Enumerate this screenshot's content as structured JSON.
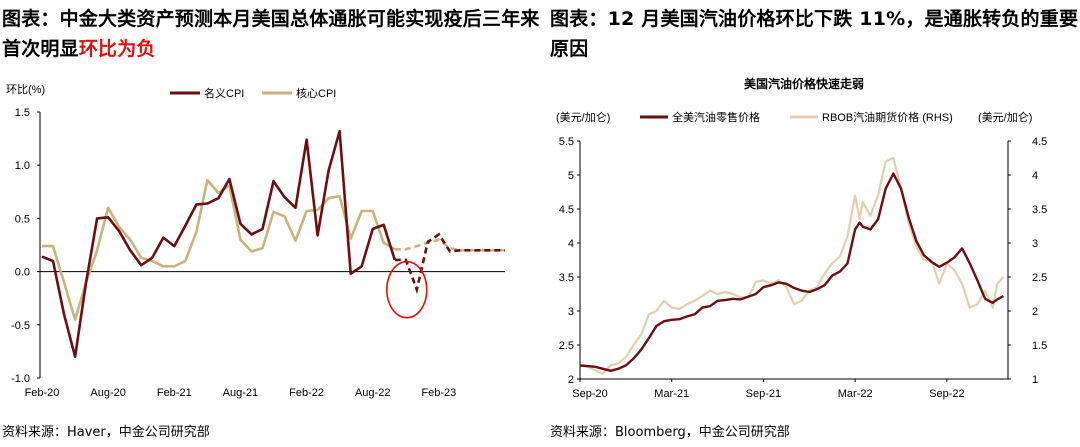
{
  "left": {
    "heading_prefix": "图表：中金大类资产预测本月美国总体通胀可能实现疫后三年来首次明显",
    "heading_highlight": "环比为负",
    "source": "资料来源：Haver，中金公司研究部",
    "colors": {
      "headline": "#6b0f14",
      "core": "#c9b37e",
      "circle": "#e01010"
    }
  },
  "right": {
    "heading": "图表：12 月美国汽油价格环比下跌 11%，是通胀转负的重要原因",
    "source": "资料来源：Bloomberg，中金公司研究部",
    "colors": {
      "retail": "#6b0f14",
      "futures": "#e3ceb0"
    }
  },
  "chart_data": [
    {
      "type": "line",
      "title": "",
      "ylabel": "环比(%)",
      "ylim": [
        -1.0,
        1.5
      ],
      "yticks": [
        -1.0,
        -0.5,
        0.0,
        0.5,
        1.0,
        1.5
      ],
      "ytick_labels": [
        "-1.0",
        "-0.5",
        "0.0",
        "0.5",
        "1.0",
        "1.5"
      ],
      "xtick_labels": [
        "Feb-20",
        "Aug-20",
        "Feb-21",
        "Aug-21",
        "Feb-22",
        "Aug-22",
        "Feb-23"
      ],
      "xtick_index": [
        0,
        6,
        12,
        18,
        24,
        30,
        36
      ],
      "legend_position": "top",
      "series": [
        {
          "name": "名义CPI",
          "values": [
            0.14,
            0.1,
            -0.4,
            -0.8,
            -0.1,
            0.5,
            0.51,
            0.38,
            0.2,
            0.06,
            0.13,
            0.32,
            0.24,
            0.43,
            0.63,
            0.64,
            0.69,
            0.87,
            0.45,
            0.35,
            0.4,
            0.85,
            0.7,
            0.6,
            1.24,
            0.34,
            0.95,
            1.32,
            -0.02,
            0.05,
            0.4,
            0.44,
            0.11
          ],
          "forecast_values": [
            0.11,
            -0.17,
            0.28,
            0.35,
            0.19,
            0.2,
            0.2,
            0.2,
            0.2,
            0.2
          ]
        },
        {
          "name": "核心CPI",
          "values": [
            0.24,
            0.24,
            -0.1,
            -0.45,
            -0.1,
            0.2,
            0.6,
            0.42,
            0.3,
            0.13,
            0.1,
            0.05,
            0.05,
            0.1,
            0.37,
            0.86,
            0.74,
            0.81,
            0.3,
            0.19,
            0.22,
            0.56,
            0.52,
            0.29,
            0.57,
            0.58,
            0.69,
            0.71,
            0.31,
            0.57,
            0.57,
            0.27,
            0.21
          ],
          "forecast_values": [
            0.21,
            0.24,
            0.27,
            0.3,
            0.22,
            0.2,
            0.2,
            0.2,
            0.2,
            0.2
          ]
        }
      ],
      "annotation": "red circle around projected negative month-on-month CPI"
    },
    {
      "type": "line",
      "title": "美国汽油价格快速走弱",
      "ylabel": "(美元/加仑)",
      "ylabel_right": "(美元/加仑)",
      "ylim": [
        2.0,
        5.5
      ],
      "ylim_right": [
        1.0,
        4.5
      ],
      "yticks": [
        2,
        2.5,
        3,
        3.5,
        4,
        4.5,
        5,
        5.5
      ],
      "ytick_labels": [
        "2",
        "2.5",
        "3",
        "3.5",
        "4",
        "4.5",
        "5",
        "5.5"
      ],
      "yticks_right": [
        1,
        1.5,
        2,
        2.5,
        3,
        3.5,
        4,
        4.5
      ],
      "ytick_labels_right": [
        "1",
        "1.5",
        "2",
        "2.5",
        "3",
        "3.5",
        "4",
        "4.5"
      ],
      "x_range": [
        "2020-09",
        "2023-01"
      ],
      "xtick_labels": [
        "Sep-20",
        "Mar-21",
        "Sep-21",
        "Mar-22",
        "Sep-22"
      ],
      "xtick_months": [
        0,
        6,
        12,
        18,
        24
      ],
      "legend_position": "top",
      "series": [
        {
          "name": "全美汽油零售价格",
          "axis": "left",
          "x_months": [
            0,
            0.5,
            1,
            1.5,
            2,
            2.5,
            3,
            3.5,
            4,
            4.5,
            5,
            5.5,
            6,
            6.5,
            7,
            7.5,
            8,
            8.5,
            9,
            9.5,
            10,
            10.5,
            11,
            11.5,
            12,
            12.5,
            13,
            13.5,
            14,
            14.5,
            15,
            15.5,
            16,
            16.5,
            17,
            17.5,
            18,
            18.3,
            18.5,
            19,
            19.5,
            20,
            20.5,
            21,
            21.5,
            22,
            22.5,
            23,
            23.5,
            24,
            24.5,
            25,
            25.5,
            26,
            26.5,
            27,
            27.3,
            27.7
          ],
          "values": [
            2.2,
            2.19,
            2.18,
            2.15,
            2.12,
            2.15,
            2.2,
            2.3,
            2.43,
            2.6,
            2.78,
            2.85,
            2.87,
            2.88,
            2.92,
            2.95,
            3.05,
            3.07,
            3.15,
            3.16,
            3.18,
            3.17,
            3.21,
            3.25,
            3.35,
            3.38,
            3.42,
            3.4,
            3.34,
            3.3,
            3.28,
            3.32,
            3.38,
            3.52,
            3.58,
            3.7,
            4.2,
            4.3,
            4.24,
            4.2,
            4.35,
            4.8,
            5.02,
            4.8,
            4.38,
            4.03,
            3.82,
            3.72,
            3.65,
            3.71,
            3.79,
            3.92,
            3.7,
            3.45,
            3.18,
            3.12,
            3.17,
            3.22
          ]
        },
        {
          "name": "RBOB汽油期货价格 (RHS)",
          "axis": "right",
          "x_months": [
            0,
            0.5,
            1,
            1.5,
            2,
            2.5,
            3,
            3.5,
            4,
            4.5,
            5,
            5.5,
            6,
            6.5,
            7,
            7.5,
            8,
            8.5,
            9,
            9.5,
            10,
            10.5,
            11,
            11.5,
            12,
            12.5,
            13,
            13.5,
            14,
            14.5,
            15,
            15.5,
            16,
            16.5,
            17,
            17.5,
            18,
            18.3,
            18.5,
            19,
            19.5,
            20,
            20.5,
            21,
            21.5,
            22,
            22.5,
            23,
            23.5,
            24,
            24.5,
            25,
            25.5,
            26,
            26.5,
            27,
            27.3,
            27.7
          ],
          "values": [
            1.2,
            1.18,
            1.13,
            1.08,
            1.2,
            1.23,
            1.32,
            1.5,
            1.65,
            1.95,
            2.0,
            2.15,
            2.05,
            2.03,
            2.1,
            2.15,
            2.22,
            2.3,
            2.25,
            2.28,
            2.25,
            2.2,
            2.2,
            2.43,
            2.45,
            2.4,
            2.45,
            2.35,
            2.1,
            2.15,
            2.3,
            2.35,
            2.55,
            2.7,
            2.8,
            3.1,
            3.7,
            3.35,
            3.6,
            3.4,
            3.7,
            4.2,
            4.25,
            3.8,
            3.3,
            2.95,
            2.75,
            2.75,
            2.4,
            2.7,
            2.6,
            2.4,
            2.05,
            2.1,
            2.3,
            2.05,
            2.4,
            2.5
          ]
        }
      ]
    }
  ]
}
